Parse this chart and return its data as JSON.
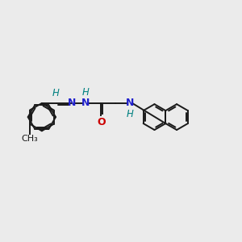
{
  "bg_color": "#ebebeb",
  "bond_color": "#1a1a1a",
  "n_color": "#2020cc",
  "o_color": "#cc0000",
  "h_color": "#008080",
  "line_width": 1.4,
  "font_size": 8.5,
  "fig_width": 3.0,
  "fig_height": 3.0,
  "dpi": 100,
  "xlim": [
    0,
    12
  ],
  "ylim": [
    0,
    10
  ]
}
